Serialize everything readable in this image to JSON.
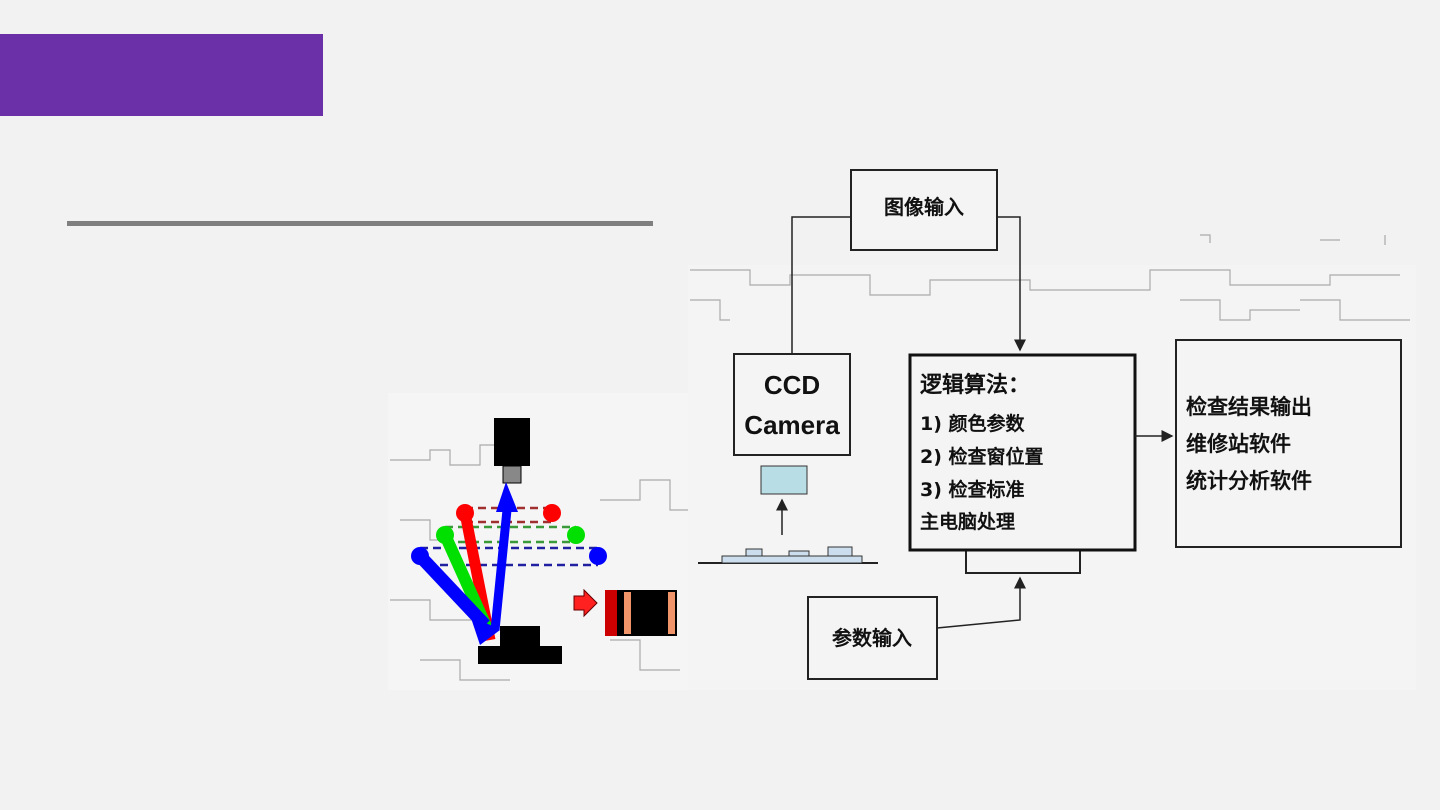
{
  "slide": {
    "accent_color": "#6b2fa8",
    "rule_color": "#7f7f7f"
  },
  "diagram": {
    "image_input": "图像输入",
    "camera": {
      "line1": "CCD",
      "line2": "Camera"
    },
    "logic": {
      "title": "逻辑算法：",
      "items": [
        "1) 颜色参数",
        "2) 检查窗位置",
        "3) 检查标准",
        "主电脑处理"
      ]
    },
    "output": {
      "items": [
        "检查结果输出",
        "维修站软件",
        "统计分析软件"
      ]
    },
    "param_input": "参数输入"
  },
  "illustration": {
    "light_colors": [
      "#ff0000",
      "#00e000",
      "#0000ff"
    ]
  }
}
